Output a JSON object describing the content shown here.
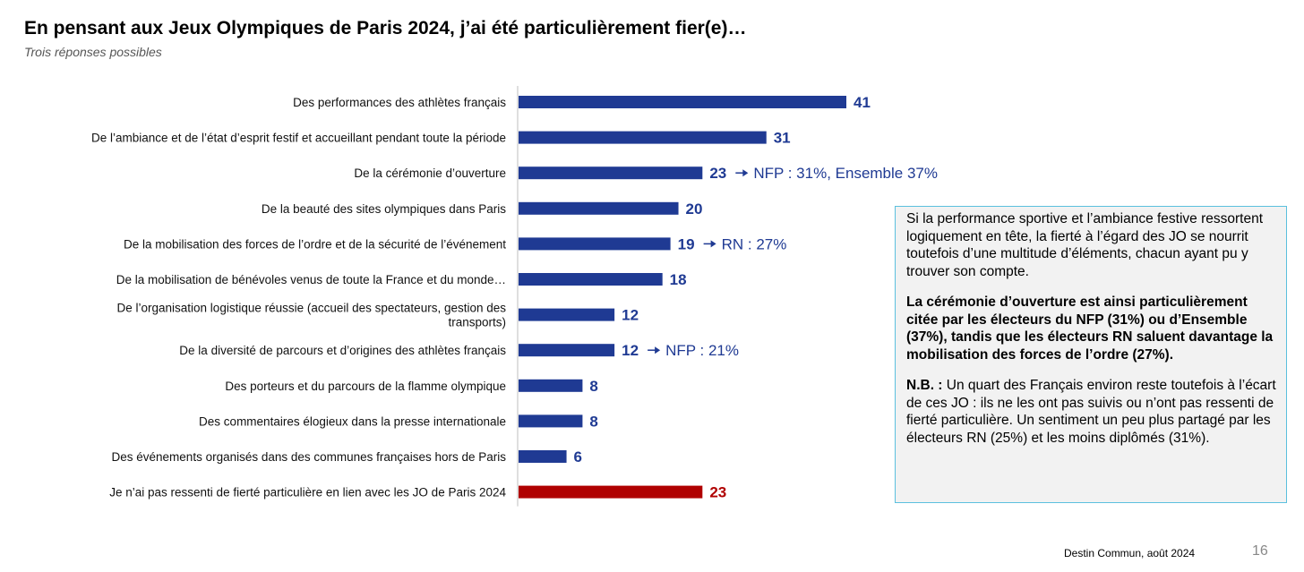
{
  "header": {
    "title": "En pensant aux Jeux Olympiques de Paris 2024, j’ai été particulièrement fier(e)…",
    "subtitle": "Trois réponses possibles"
  },
  "chart_data": {
    "type": "bar",
    "orientation": "horizontal",
    "title": "En pensant aux Jeux Olympiques de Paris 2024, j’ai été particulièrement fier(e)…",
    "subtitle": "Trois réponses possibles",
    "categories": [
      "Des performances des athlètes français",
      "De l’ambiance et de l’état d’esprit festif et accueillant pendant toute la période",
      "De la cérémonie d’ouverture",
      "De la beauté des sites olympiques dans Paris",
      "De la mobilisation des forces de l’ordre et de la sécurité de l’événement",
      "De la mobilisation de bénévoles venus de toute la France et du monde…",
      "De l’organisation logistique réussie (accueil des spectateurs, gestion des transports)",
      "De la diversité de parcours et d’origines des athlètes français",
      "Des porteurs et du parcours de la flamme olympique",
      "Des commentaires élogieux dans la presse internationale",
      "Des événements organisés dans des communes françaises hors de Paris",
      "Je n’ai pas ressenti de fierté particulière en lien avec les JO de Paris 2024"
    ],
    "category_lines": [
      [
        "Des performances des athlètes français"
      ],
      [
        "De l’ambiance et de l’état d’esprit festif et accueillant pendant toute la période"
      ],
      [
        "De la cérémonie d’ouverture"
      ],
      [
        "De la beauté des sites olympiques dans Paris"
      ],
      [
        "De la mobilisation des forces de l’ordre et de la sécurité de l’événement"
      ],
      [
        "De la mobilisation de bénévoles venus de toute la France et du monde…"
      ],
      [
        "De l’organisation logistique réussie (accueil des spectateurs, gestion des",
        "transports)"
      ],
      [
        "De la diversité de parcours et d’origines des athlètes français"
      ],
      [
        "Des porteurs et du parcours de la flamme olympique"
      ],
      [
        "Des commentaires élogieux dans la presse internationale"
      ],
      [
        "Des événements organisés dans des communes françaises hors de Paris"
      ],
      [
        "Je n’ai pas ressenti de fierté particulière en lien avec les JO de Paris 2024"
      ]
    ],
    "values": [
      41,
      31,
      23,
      20,
      19,
      18,
      12,
      12,
      8,
      8,
      6,
      23
    ],
    "highlight_index": 11,
    "colors": {
      "bar": "#1f3a93",
      "highlight": "#b00000",
      "axis": "#bfbfbf"
    },
    "xlim": [
      0,
      45
    ],
    "annotations": [
      {
        "index": 2,
        "text": "NFP : 31%, Ensemble 37%"
      },
      {
        "index": 4,
        "text": "RN : 27%"
      },
      {
        "index": 7,
        "text": "NFP : 21%"
      }
    ],
    "grid": false,
    "legend": "none"
  },
  "commentary": {
    "p1": "Si la performance sportive et l’ambiance festive ressortent logiquement en tête, la fierté à l’égard des JO se nourrit toutefois d’une multitude d’éléments, chacun ayant pu y trouver son compte.",
    "p2": "La cérémonie d’ouverture est ainsi particulièrement citée par les électeurs du NFP (31%) ou d’Ensemble (37%), tandis que les électeurs RN saluent davantage la mobilisation des forces de l’ordre (27%).",
    "p3_lead": "N.B. :",
    "p3_text": " Un quart des Français environ reste toutefois à l’écart de ces JO : ils ne les ont pas suivis ou n’ont pas ressenti de fierté particulière. Un sentiment un peu plus partagé par les électeurs RN (25%) et les moins diplômés (31%)."
  },
  "footer": {
    "source": "Destin Commun, août 2024",
    "page_number": "16"
  }
}
